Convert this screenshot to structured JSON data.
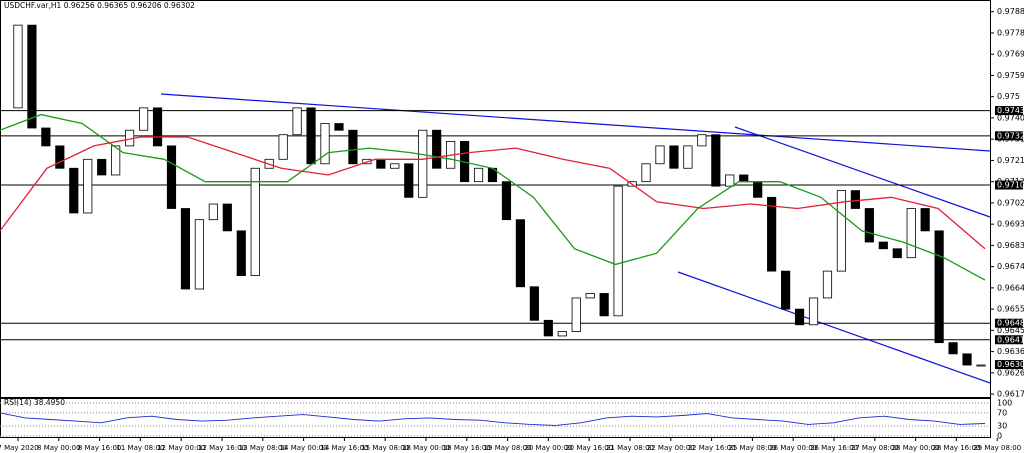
{
  "chart_data": {
    "type": "candlestick",
    "title": "USDCHF.var,H1  0.96256 0.96365 0.96206 0.96302",
    "ylim": [
      0.96157,
      0.97928
    ],
    "yticks": [
      0.9788,
      0.97785,
      0.9769,
      0.97595,
      0.975,
      0.97405,
      0.9731,
      0.97215,
      0.9712,
      0.97025,
      0.9693,
      0.96835,
      0.9674,
      0.96645,
      0.9655,
      0.96455,
      0.9636,
      0.96265,
      0.9617
    ],
    "levels": [
      0.97438,
      0.97325,
      0.97105,
      0.96487,
      0.96413
    ],
    "current": 0.96302,
    "x_labels": [
      "7 May 2020",
      "8 May 00:00",
      "8 May 16:00",
      "11 May 08:00",
      "12 May 00:00",
      "12 May 16:00",
      "13 May 08:00",
      "14 May 00:00",
      "14 May 16:00",
      "15 May 08:00",
      "18 May 00:00",
      "18 May 16:00",
      "19 May 08:00",
      "20 May 00:00",
      "20 May 16:00",
      "21 May 08:00",
      "22 May 00:00",
      "22 May 16:00",
      "25 May 08:00",
      "26 May 00:00",
      "26 May 16:00",
      "27 May 08:00",
      "28 May 00:00",
      "28 May 16:00",
      "29 May 08:00"
    ],
    "closes": [
      0.9745,
      0.9782,
      0.9736,
      0.9728,
      0.9718,
      0.9698,
      0.9722,
      0.9715,
      0.9728,
      0.9735,
      0.9745,
      0.9728,
      0.97,
      0.9664,
      0.9695,
      0.9702,
      0.969,
      0.967,
      0.9718,
      0.9722,
      0.9733,
      0.9745,
      0.972,
      0.9738,
      0.9735,
      0.972,
      0.9722,
      0.9718,
      0.972,
      0.9705,
      0.9735,
      0.9718,
      0.973,
      0.9712,
      0.9718,
      0.9712,
      0.9695,
      0.9665,
      0.965,
      0.9643,
      0.9645,
      0.966,
      0.9662,
      0.9652,
      0.971,
      0.9712,
      0.972,
      0.9728,
      0.9718,
      0.9728,
      0.9733,
      0.971,
      0.9715,
      0.9712,
      0.9705,
      0.9672,
      0.9655,
      0.9648,
      0.966,
      0.9672,
      0.9708,
      0.97,
      0.9685,
      0.9682,
      0.9678,
      0.97,
      0.969,
      0.964,
      0.9635,
      0.963,
      0.963
    ],
    "series": [
      {
        "color": "#1a9a1a",
        "values": [
          0.9735,
          0.9742,
          0.9738,
          0.9725,
          0.9722,
          0.9712,
          0.9712,
          0.9712,
          0.9725,
          0.9727,
          0.9725,
          0.9722,
          0.9718,
          0.9705,
          0.9682,
          0.9675,
          0.968,
          0.97,
          0.9712,
          0.9712,
          0.9705,
          0.969,
          0.9685,
          0.9678,
          0.9668
        ]
      },
      {
        "color": "#e0203a",
        "values": [
          0.969,
          0.9718,
          0.9728,
          0.9732,
          0.9732,
          0.9725,
          0.9718,
          0.9715,
          0.9722,
          0.9722,
          0.9725,
          0.9727,
          0.9722,
          0.9718,
          0.9703,
          0.97,
          0.9702,
          0.97,
          0.9703,
          0.9705,
          0.97,
          0.9682
        ]
      }
    ],
    "rsi": {
      "title": "RSI(14) 38.4950",
      "ylim": [
        0,
        100
      ],
      "yticks": [
        100,
        70,
        30,
        0
      ],
      "values": [
        70,
        55,
        50,
        45,
        40,
        55,
        60,
        50,
        45,
        48,
        55,
        60,
        65,
        58,
        50,
        45,
        52,
        55,
        50,
        48,
        40,
        35,
        32,
        40,
        55,
        60,
        58,
        62,
        68,
        55,
        50,
        45,
        35,
        40,
        55,
        60,
        50,
        45,
        35,
        38
      ]
    }
  }
}
